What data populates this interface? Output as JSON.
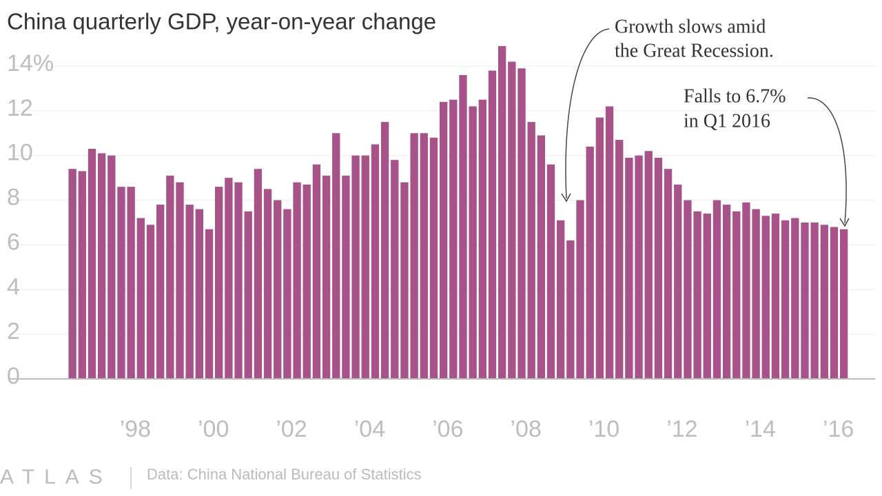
{
  "chart_data": {
    "type": "bar",
    "title": "China quarterly GDP, year-on-year change",
    "x": [
      1996.25,
      1996.5,
      1996.75,
      1997,
      1997.25,
      1997.5,
      1997.75,
      1998,
      1998.25,
      1998.5,
      1998.75,
      1999,
      1999.25,
      1999.5,
      1999.75,
      2000,
      2000.25,
      2000.5,
      2000.75,
      2001,
      2001.25,
      2001.5,
      2001.75,
      2002,
      2002.25,
      2002.5,
      2002.75,
      2003,
      2003.25,
      2003.5,
      2003.75,
      2004,
      2004.25,
      2004.5,
      2004.75,
      2005,
      2005.25,
      2005.5,
      2005.75,
      2006,
      2006.25,
      2006.5,
      2006.75,
      2007,
      2007.25,
      2007.5,
      2007.75,
      2008,
      2008.25,
      2008.5,
      2008.75,
      2009,
      2009.25,
      2009.5,
      2009.75,
      2010,
      2010.25,
      2010.5,
      2010.75,
      2011,
      2011.25,
      2011.5,
      2011.75,
      2012,
      2012.25,
      2012.5,
      2012.75,
      2013,
      2013.25,
      2013.5,
      2013.75,
      2014,
      2014.25,
      2014.5,
      2014.75,
      2015,
      2015.25,
      2015.5,
      2015.75,
      2016
    ],
    "values": [
      9.4,
      9.3,
      10.3,
      10.1,
      10.0,
      8.6,
      8.6,
      7.2,
      6.9,
      7.8,
      9.1,
      8.8,
      7.8,
      7.6,
      6.7,
      8.6,
      9.0,
      8.8,
      7.5,
      9.4,
      8.5,
      8.0,
      7.6,
      8.8,
      8.7,
      9.6,
      9.1,
      11.0,
      9.1,
      10.0,
      10.0,
      10.5,
      11.5,
      9.8,
      8.8,
      11.0,
      11.0,
      10.8,
      12.4,
      12.5,
      13.6,
      12.2,
      12.5,
      13.8,
      14.9,
      14.2,
      13.9,
      11.5,
      10.9,
      9.6,
      7.1,
      6.2,
      8.0,
      10.4,
      11.7,
      12.2,
      10.7,
      9.9,
      10.0,
      10.2,
      9.9,
      9.4,
      8.7,
      8.0,
      7.5,
      7.4,
      8.0,
      7.8,
      7.5,
      7.9,
      7.6,
      7.3,
      7.4,
      7.1,
      7.2,
      7.0,
      7.0,
      6.9,
      6.8,
      6.7
    ],
    "color": "#a8528a",
    "xlim": [
      1994.66,
      2016.8
    ],
    "xticks": [
      {
        "value": 1998,
        "label": "’98"
      },
      {
        "value": 2000,
        "label": "’00"
      },
      {
        "value": 2002,
        "label": "’02"
      },
      {
        "value": 2004,
        "label": "’04"
      },
      {
        "value": 2006,
        "label": "’06"
      },
      {
        "value": 2008,
        "label": "’08"
      },
      {
        "value": 2010,
        "label": "’10"
      },
      {
        "value": 2012,
        "label": "’12"
      },
      {
        "value": 2014,
        "label": "’14"
      },
      {
        "value": 2016,
        "label": "’16"
      }
    ],
    "ylim": [
      0,
      15
    ],
    "yticks": [
      0,
      2,
      4,
      6,
      8,
      10,
      12,
      {
        "value": 14,
        "label": "14%"
      }
    ],
    "grid": true,
    "annotations": [
      {
        "lines": [
          "Growth slows amid",
          "the Great Recession."
        ]
      },
      {
        "lines": [
          "Falls to 6.7%",
          "in Q1 2016"
        ]
      }
    ],
    "brand": "ATLAS",
    "source": "Data: China National Bureau of Statistics"
  }
}
